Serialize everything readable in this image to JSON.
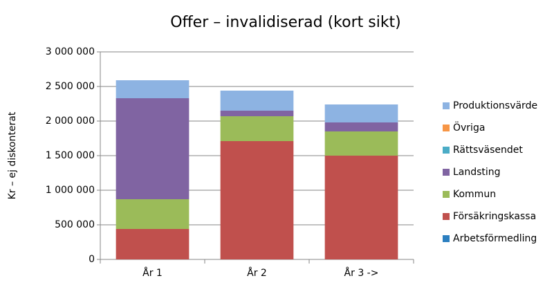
{
  "chart_data": {
    "type": "stacked_bar",
    "title": "Offer – invalidiserad (kort sikt)",
    "y_label": "Kr – ej diskonterat",
    "categories": [
      "År 1",
      "År 2",
      "År 3 ->"
    ],
    "series": [
      {
        "name": "Arbetsförmedling",
        "color": "#2c7fc0",
        "values": [
          0,
          0,
          0
        ]
      },
      {
        "name": "Försäkringskassa",
        "color": "#c0504d",
        "values": [
          440000,
          1710000,
          1500000
        ]
      },
      {
        "name": "Kommun",
        "color": "#9bbb59",
        "values": [
          430000,
          360000,
          350000
        ]
      },
      {
        "name": "Landsting",
        "color": "#8064a2",
        "values": [
          1460000,
          80000,
          130000
        ]
      },
      {
        "name": "Rättsväsendet",
        "color": "#4bacc6",
        "values": [
          0,
          0,
          0
        ]
      },
      {
        "name": "Övriga",
        "color": "#f79646",
        "values": [
          0,
          0,
          0
        ]
      },
      {
        "name": "Produktionsvärde",
        "color": "#8db3e2",
        "values": [
          260000,
          290000,
          260000
        ]
      }
    ],
    "ylim": [
      0,
      3000000
    ],
    "yticks": [
      0,
      {
        "value": 500000,
        "label": "500 000"
      },
      {
        "value": 1000000,
        "label": "1 000 000"
      },
      {
        "value": 1500000,
        "label": "1 500 000"
      },
      {
        "value": 2000000,
        "label": "2 000 000"
      },
      {
        "value": 2500000,
        "label": "2 500 000"
      },
      {
        "value": 3000000,
        "label": "3 000 000"
      }
    ],
    "grid": true,
    "legend": "right"
  }
}
